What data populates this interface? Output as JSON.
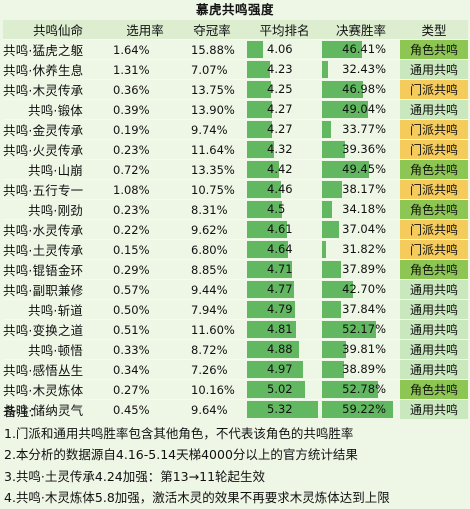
{
  "colors": {
    "background": "#eef6e6",
    "bar_fill": "#62b861",
    "type_colors": {
      "角色共鸣": "#8dc653",
      "通用共鸣": "#c9e8be",
      "门派共鸣": "#f5cb5c"
    }
  },
  "chart_data": {
    "type": "table",
    "title": "慕虎共鸣强度",
    "columns": [
      "共鸣仙命",
      "选用率",
      "夺冠率",
      "平均排名",
      "决赛胜率",
      "类型"
    ],
    "avg_rank_range": [
      3.7,
      5.4
    ],
    "final_win_rate_range": [
      30,
      62
    ],
    "rows": [
      {
        "name": "共鸣·猛虎之躯",
        "pick": "1.64%",
        "champ": "15.88%",
        "avg_rank": 4.06,
        "avg_rank_label": "4.06",
        "win": 46.41,
        "win_label": "46.41%",
        "type": "角色共鸣",
        "indent": false
      },
      {
        "name": "共鸣·休养生息",
        "pick": "1.31%",
        "champ": "7.07%",
        "avg_rank": 4.23,
        "avg_rank_label": "4.23",
        "win": 32.43,
        "win_label": "32.43%",
        "type": "通用共鸣",
        "indent": false
      },
      {
        "name": "共鸣·木灵传承",
        "pick": "0.36%",
        "champ": "13.75%",
        "avg_rank": 4.25,
        "avg_rank_label": "4.25",
        "win": 46.98,
        "win_label": "46.98%",
        "type": "门派共鸣",
        "indent": false
      },
      {
        "name": "共鸣·锻体",
        "pick": "0.39%",
        "champ": "13.90%",
        "avg_rank": 4.27,
        "avg_rank_label": "4.27",
        "win": 49.04,
        "win_label": "49.04%",
        "type": "通用共鸣",
        "indent": true
      },
      {
        "name": "共鸣·金灵传承",
        "pick": "0.19%",
        "champ": "9.74%",
        "avg_rank": 4.27,
        "avg_rank_label": "4.27",
        "win": 33.77,
        "win_label": "33.77%",
        "type": "门派共鸣",
        "indent": false
      },
      {
        "name": "共鸣·火灵传承",
        "pick": "0.23%",
        "champ": "11.64%",
        "avg_rank": 4.32,
        "avg_rank_label": "4.32",
        "win": 39.36,
        "win_label": "39.36%",
        "type": "门派共鸣",
        "indent": false
      },
      {
        "name": "共鸣·山崩",
        "pick": "0.72%",
        "champ": "13.35%",
        "avg_rank": 4.42,
        "avg_rank_label": "4.42",
        "win": 49.45,
        "win_label": "49.45%",
        "type": "角色共鸣",
        "indent": true
      },
      {
        "name": "共鸣·五行专一",
        "pick": "1.08%",
        "champ": "10.75%",
        "avg_rank": 4.46,
        "avg_rank_label": "4.46",
        "win": 38.17,
        "win_label": "38.17%",
        "type": "门派共鸣",
        "indent": false
      },
      {
        "name": "共鸣·刚劲",
        "pick": "0.23%",
        "champ": "8.31%",
        "avg_rank": 4.5,
        "avg_rank_label": "4.5",
        "win": 34.18,
        "win_label": "34.18%",
        "type": "角色共鸣",
        "indent": true
      },
      {
        "name": "共鸣·水灵传承",
        "pick": "0.22%",
        "champ": "9.62%",
        "avg_rank": 4.61,
        "avg_rank_label": "4.61",
        "win": 37.04,
        "win_label": "37.04%",
        "type": "门派共鸣",
        "indent": false
      },
      {
        "name": "共鸣·土灵传承",
        "pick": "0.15%",
        "champ": "6.80%",
        "avg_rank": 4.64,
        "avg_rank_label": "4.64",
        "win": 31.82,
        "win_label": "31.82%",
        "type": "门派共鸣",
        "indent": false
      },
      {
        "name": "共鸣·锟铻金环",
        "pick": "0.29%",
        "champ": "8.85%",
        "avg_rank": 4.71,
        "avg_rank_label": "4.71",
        "win": 37.89,
        "win_label": "37.89%",
        "type": "角色共鸣",
        "indent": false
      },
      {
        "name": "共鸣·副职兼修",
        "pick": "0.57%",
        "champ": "9.44%",
        "avg_rank": 4.77,
        "avg_rank_label": "4.77",
        "win": 42.7,
        "win_label": "42.70%",
        "type": "通用共鸣",
        "indent": false
      },
      {
        "name": "共鸣·斩道",
        "pick": "0.50%",
        "champ": "7.94%",
        "avg_rank": 4.79,
        "avg_rank_label": "4.79",
        "win": 37.84,
        "win_label": "37.84%",
        "type": "通用共鸣",
        "indent": true
      },
      {
        "name": "共鸣·变换之道",
        "pick": "0.51%",
        "champ": "11.60%",
        "avg_rank": 4.81,
        "avg_rank_label": "4.81",
        "win": 52.17,
        "win_label": "52.17%",
        "type": "通用共鸣",
        "indent": false
      },
      {
        "name": "共鸣·顿悟",
        "pick": "0.33%",
        "champ": "8.72%",
        "avg_rank": 4.88,
        "avg_rank_label": "4.88",
        "win": 39.81,
        "win_label": "39.81%",
        "type": "通用共鸣",
        "indent": true
      },
      {
        "name": "共鸣·感悟丛生",
        "pick": "0.34%",
        "champ": "7.26%",
        "avg_rank": 4.97,
        "avg_rank_label": "4.97",
        "win": 38.89,
        "win_label": "38.89%",
        "type": "通用共鸣",
        "indent": false
      },
      {
        "name": "共鸣·木灵炼体",
        "pick": "0.27%",
        "champ": "10.16%",
        "avg_rank": 5.02,
        "avg_rank_label": "5.02",
        "win": 52.78,
        "win_label": "52.78%",
        "type": "角色共鸣",
        "indent": false
      },
      {
        "name": "共鸣·储纳灵气",
        "pick": "0.45%",
        "champ": "9.64%",
        "avg_rank": 5.32,
        "avg_rank_label": "5.32",
        "win": 59.22,
        "win_label": "59.22%",
        "type": "通用共鸣",
        "indent": false
      }
    ]
  },
  "notes": {
    "heading": "备注：",
    "lines": [
      "1.门派和通用共鸣胜率包含其他角色，不代表该角色的共鸣胜率",
      "2.本分析的数据源自4.16-5.14天梯4000分以上的官方统计结果",
      "3.共鸣·土灵传承4.24加强：第13→11轮起生效",
      "4.共鸣·木灵炼体5.8加强，激活木灵的效果不再要求木灵炼体达到上限"
    ]
  }
}
